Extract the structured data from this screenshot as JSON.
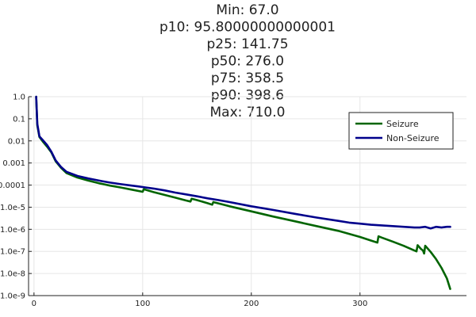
{
  "chart_data": {
    "type": "line",
    "title_lines": [
      "Min: 67.0",
      "p10: 95.80000000000001",
      "p25: 141.75",
      "p50: 276.0",
      "p75: 358.5",
      "p90: 398.6",
      "Max: 710.0"
    ],
    "xlabel": "",
    "ylabel": "",
    "xlim": [
      -5,
      398
    ],
    "ylim_log10": [
      -9,
      0
    ],
    "y_scale": "log10",
    "x_ticks": [
      0,
      100,
      200,
      300
    ],
    "x_tick_labels": [
      "0",
      "100",
      "200",
      "300"
    ],
    "y_ticks_log10": [
      -9,
      -8,
      -7,
      -6,
      -5,
      -4,
      -3,
      -2,
      -1,
      0
    ],
    "y_tick_labels": [
      "1.0e-9",
      "1.0e-8",
      "1.0e-7",
      "1.0e-6",
      "1.0e-5",
      "0.0001",
      "0.001",
      "0.01",
      "0.1",
      "1.0"
    ],
    "grid": true,
    "legend_position": "top-right",
    "series": [
      {
        "name": "Seizure",
        "color": "#006400",
        "x": [
          2,
          3,
          5,
          8,
          12,
          16,
          20,
          25,
          30,
          40,
          50,
          60,
          70,
          80,
          90,
          100,
          101,
          110,
          120,
          130,
          140,
          144,
          145,
          150,
          160,
          164,
          165,
          180,
          200,
          220,
          240,
          260,
          280,
          300,
          310,
          316,
          317,
          320,
          330,
          340,
          350,
          352,
          353,
          356,
          358,
          359,
          360,
          365,
          370,
          375,
          380,
          383
        ],
        "y": [
          1.0,
          0.05,
          0.015,
          0.0095,
          0.0055,
          0.003,
          0.0012,
          0.0006,
          0.00035,
          0.00022,
          0.00016,
          0.00012,
          9.5e-05,
          7.8e-05,
          6.2e-05,
          5e-05,
          6.5e-05,
          4.8e-05,
          3.6e-05,
          2.7e-05,
          2e-05,
          1.8e-05,
          2.4e-05,
          2.1e-05,
          1.5e-05,
          1.3e-05,
          1.7e-05,
          1.1e-05,
          6.5e-06,
          3.8e-06,
          2.3e-06,
          1.4e-06,
          8.5e-07,
          4.5e-07,
          3.1e-07,
          2.5e-07,
          4.8e-07,
          4.2e-07,
          2.8e-07,
          1.8e-07,
          1.1e-07,
          1e-07,
          1.9e-07,
          1.3e-07,
          1.1e-07,
          8e-08,
          1.8e-07,
          9.5e-08,
          4.5e-08,
          1.8e-08,
          6e-09,
          2e-09
        ]
      },
      {
        "name": "Non-Seizure",
        "color": "#00008b",
        "x": [
          2,
          3,
          5,
          8,
          12,
          16,
          20,
          25,
          30,
          40,
          50,
          60,
          70,
          80,
          90,
          100,
          110,
          120,
          130,
          140,
          150,
          160,
          170,
          180,
          200,
          220,
          240,
          260,
          280,
          290,
          300,
          310,
          320,
          330,
          340,
          350,
          355,
          360,
          365,
          370,
          375,
          380,
          383
        ],
        "y": [
          1.0,
          0.06,
          0.016,
          0.011,
          0.0065,
          0.0032,
          0.0013,
          0.00065,
          0.0004,
          0.00026,
          0.0002,
          0.00016,
          0.00013,
          0.00011,
          9.5e-05,
          8.2e-05,
          7e-05,
          5.8e-05,
          4.6e-05,
          3.8e-05,
          3.1e-05,
          2.5e-05,
          2.1e-05,
          1.7e-05,
          1.1e-05,
          7.5e-06,
          5e-06,
          3.4e-06,
          2.4e-06,
          2e-06,
          1.8e-06,
          1.6e-06,
          1.5e-06,
          1.4e-06,
          1.3e-06,
          1.2e-06,
          1.2e-06,
          1.3e-06,
          1.1e-06,
          1.3e-06,
          1.2e-06,
          1.3e-06,
          1.3e-06
        ]
      }
    ]
  }
}
